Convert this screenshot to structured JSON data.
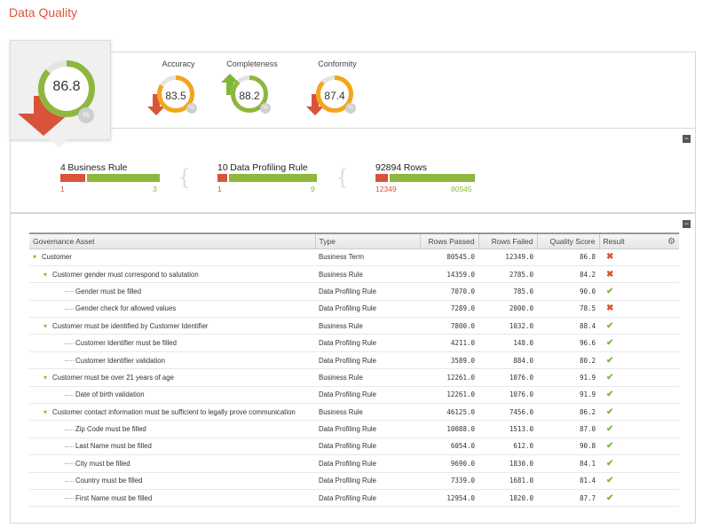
{
  "page_title": "Data Quality",
  "overall": {
    "value": "86.8",
    "pct_badge": "%",
    "level": 0.868
  },
  "metrics": [
    {
      "label": "Accuracy",
      "value": "83.5",
      "pct_badge": "%",
      "level": 0.835,
      "trend": "down"
    },
    {
      "label": "Completeness",
      "value": "88.2",
      "pct_badge": "%",
      "level": 0.882,
      "trend": "up"
    },
    {
      "label": "Conformity",
      "value": "87.4",
      "pct_badge": "%",
      "level": 0.874,
      "trend": "down"
    }
  ],
  "stats": {
    "business_rule": {
      "count": "4",
      "label": "Business Rule",
      "failed": "1",
      "passed": "3"
    },
    "profiling_rule": {
      "count": "10",
      "label": "Data Profiling Rule",
      "failed": "1",
      "passed": "9"
    },
    "rows": {
      "count": "92894",
      "label": "Rows",
      "failed": "12349",
      "passed": "80545"
    }
  },
  "table": {
    "headers": {
      "asset": "Governance Asset",
      "type": "Type",
      "passed": "Rows Passed",
      "failed": "Rows Failed",
      "score": "Quality Score",
      "result": "Result"
    },
    "rows": [
      {
        "name": "Customer",
        "level": 0,
        "expand": true,
        "type": "Business Term",
        "passed": "80545.0",
        "failed": "12349.0",
        "score": "86.8",
        "result": "fail"
      },
      {
        "name": "Customer gender must correspond to salutation",
        "level": 1,
        "expand": true,
        "type": "Business Rule",
        "passed": "14359.0",
        "failed": "2785.0",
        "score": "84.2",
        "result": "fail"
      },
      {
        "name": "Gender must be filled",
        "level": 2,
        "expand": false,
        "type": "Data Profiling Rule",
        "passed": "7070.0",
        "failed": "785.0",
        "score": "90.0",
        "result": "pass"
      },
      {
        "name": "Gender check for allowed values",
        "level": 2,
        "expand": false,
        "type": "Data Profiling Rule",
        "passed": "7289.0",
        "failed": "2000.0",
        "score": "78.5",
        "result": "fail"
      },
      {
        "name": "Customer must be identified by Customer Identifier",
        "level": 1,
        "expand": true,
        "type": "Business Rule",
        "passed": "7800.0",
        "failed": "1032.0",
        "score": "88.4",
        "result": "pass"
      },
      {
        "name": "Customer Identifier must be filled",
        "level": 2,
        "expand": false,
        "type": "Data Profiling Rule",
        "passed": "4211.0",
        "failed": "148.0",
        "score": "96.6",
        "result": "pass"
      },
      {
        "name": "Customer Identifier validation",
        "level": 2,
        "expand": false,
        "type": "Data Profiling Rule",
        "passed": "3589.0",
        "failed": "884.0",
        "score": "80.2",
        "result": "pass"
      },
      {
        "name": "Customer must be over 21 years of age",
        "level": 1,
        "expand": true,
        "type": "Business Rule",
        "passed": "12261.0",
        "failed": "1076.0",
        "score": "91.9",
        "result": "pass"
      },
      {
        "name": "Date of birth validation",
        "level": 2,
        "expand": false,
        "type": "Data Profiling Rule",
        "passed": "12261.0",
        "failed": "1076.0",
        "score": "91.9",
        "result": "pass"
      },
      {
        "name": "Customer contact information must be sufficient to legally prove communication",
        "level": 1,
        "expand": true,
        "type": "Business Rule",
        "passed": "46125.0",
        "failed": "7456.0",
        "score": "86.2",
        "result": "pass"
      },
      {
        "name": "Zip Code must be filled",
        "level": 2,
        "expand": false,
        "type": "Data Profiling Rule",
        "passed": "10088.0",
        "failed": "1513.0",
        "score": "87.0",
        "result": "pass"
      },
      {
        "name": "Last Name must be filled",
        "level": 2,
        "expand": false,
        "type": "Data Profiling Rule",
        "passed": "6054.0",
        "failed": "612.0",
        "score": "90.8",
        "result": "pass"
      },
      {
        "name": "City must be filled",
        "level": 2,
        "expand": false,
        "type": "Data Profiling Rule",
        "passed": "9690.0",
        "failed": "1830.0",
        "score": "84.1",
        "result": "pass"
      },
      {
        "name": "Country must be filled",
        "level": 2,
        "expand": false,
        "type": "Data Profiling Rule",
        "passed": "7339.0",
        "failed": "1681.0",
        "score": "81.4",
        "result": "pass"
      },
      {
        "name": "First Name must be filled",
        "level": 2,
        "expand": false,
        "type": "Data Profiling Rule",
        "passed": "12954.0",
        "failed": "1820.0",
        "score": "87.7",
        "result": "pass"
      }
    ]
  },
  "colors": {
    "accent": "#e0543c",
    "good": "#8fb73e",
    "bad": "#d9533a",
    "track": "#e4e4e4",
    "gauge_fill": "#8fb73e",
    "gauge_warn": "#f3a51b"
  }
}
